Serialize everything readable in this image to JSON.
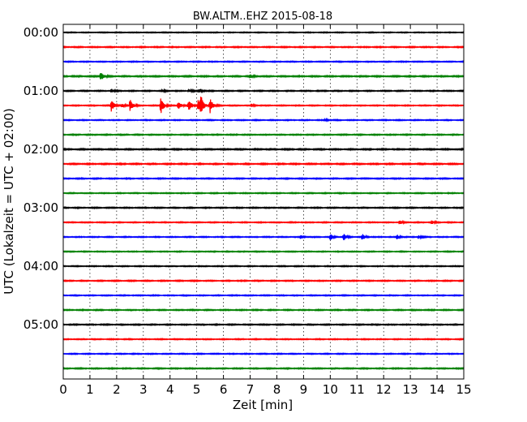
{
  "chart_data": {
    "type": "line",
    "title": "BW.ALTM..EHZ 2015-08-18",
    "xlabel": "Zeit  [min]",
    "ylabel": "UTC (Lokalzeit = UTC + 02:00)",
    "xlim": [
      0,
      15
    ],
    "xticks": [
      "0",
      "1",
      "2",
      "3",
      "4",
      "5",
      "6",
      "7",
      "8",
      "9",
      "10",
      "11",
      "12",
      "13",
      "14",
      "15"
    ],
    "yticks": [
      "00:00",
      "01:00",
      "02:00",
      "03:00",
      "04:00",
      "05:00"
    ],
    "traces_per_hour": 4,
    "minutes_per_trace": 15,
    "grid": "vertical dotted at each minute",
    "trace_colors": [
      "#000000",
      "#ff0000",
      "#0000ff",
      "#008000"
    ],
    "traces": [
      {
        "start": "00:00",
        "color": "#000000",
        "amp": 0.18,
        "events": []
      },
      {
        "start": "00:15",
        "color": "#ff0000",
        "amp": 0.22,
        "events": []
      },
      {
        "start": "00:30",
        "color": "#0000ff",
        "amp": 0.2,
        "events": []
      },
      {
        "start": "00:45",
        "color": "#008000",
        "amp": 0.25,
        "events": [
          {
            "t": 1.4,
            "a": 1.8
          },
          {
            "t": 7.0,
            "a": 0.6
          }
        ]
      },
      {
        "start": "01:00",
        "color": "#000000",
        "amp": 0.22,
        "events": [
          {
            "t": 1.8,
            "a": 0.7
          },
          {
            "t": 3.7,
            "a": 0.5
          },
          {
            "t": 4.7,
            "a": 0.5
          },
          {
            "t": 5.1,
            "a": 0.6
          }
        ]
      },
      {
        "start": "01:15",
        "color": "#ff0000",
        "amp": 0.2,
        "events": [
          {
            "t": 1.8,
            "a": 2.5
          },
          {
            "t": 2.2,
            "a": 0.6
          },
          {
            "t": 2.5,
            "a": 2.5
          },
          {
            "t": 3.65,
            "a": 3.4
          },
          {
            "t": 4.3,
            "a": 1.6
          },
          {
            "t": 4.7,
            "a": 2.5
          },
          {
            "t": 5.05,
            "a": 2.8
          },
          {
            "t": 5.15,
            "a": 3.4
          },
          {
            "t": 5.5,
            "a": 2.8
          },
          {
            "t": 7.05,
            "a": 0.5
          }
        ]
      },
      {
        "start": "01:30",
        "color": "#0000ff",
        "amp": 0.2,
        "events": [
          {
            "t": 9.8,
            "a": 0.5
          }
        ]
      },
      {
        "start": "01:45",
        "color": "#008000",
        "amp": 0.22,
        "events": []
      },
      {
        "start": "02:00",
        "color": "#000000",
        "amp": 0.25,
        "events": []
      },
      {
        "start": "02:15",
        "color": "#ff0000",
        "amp": 0.25,
        "events": []
      },
      {
        "start": "02:30",
        "color": "#0000ff",
        "amp": 0.22,
        "events": []
      },
      {
        "start": "02:45",
        "color": "#008000",
        "amp": 0.2,
        "events": []
      },
      {
        "start": "03:00",
        "color": "#000000",
        "amp": 0.22,
        "events": []
      },
      {
        "start": "03:15",
        "color": "#ff0000",
        "amp": 0.2,
        "events": [
          {
            "t": 12.6,
            "a": 0.8
          },
          {
            "t": 13.8,
            "a": 0.6
          }
        ]
      },
      {
        "start": "03:30",
        "color": "#0000ff",
        "amp": 0.2,
        "events": [
          {
            "t": 8.9,
            "a": 0.7
          },
          {
            "t": 10.0,
            "a": 1.2
          },
          {
            "t": 10.5,
            "a": 1.7
          },
          {
            "t": 11.2,
            "a": 1.1
          },
          {
            "t": 12.5,
            "a": 0.8
          },
          {
            "t": 13.3,
            "a": 0.6
          }
        ]
      },
      {
        "start": "03:45",
        "color": "#008000",
        "amp": 0.2,
        "events": []
      },
      {
        "start": "04:00",
        "color": "#000000",
        "amp": 0.2,
        "events": []
      },
      {
        "start": "04:15",
        "color": "#ff0000",
        "amp": 0.22,
        "events": []
      },
      {
        "start": "04:30",
        "color": "#0000ff",
        "amp": 0.2,
        "events": []
      },
      {
        "start": "04:45",
        "color": "#008000",
        "amp": 0.22,
        "events": []
      },
      {
        "start": "05:00",
        "color": "#000000",
        "amp": 0.22,
        "events": []
      },
      {
        "start": "05:15",
        "color": "#ff0000",
        "amp": 0.2,
        "events": []
      },
      {
        "start": "05:30",
        "color": "#0000ff",
        "amp": 0.2,
        "events": []
      },
      {
        "start": "05:45",
        "color": "#008000",
        "amp": 0.22,
        "events": []
      }
    ]
  }
}
